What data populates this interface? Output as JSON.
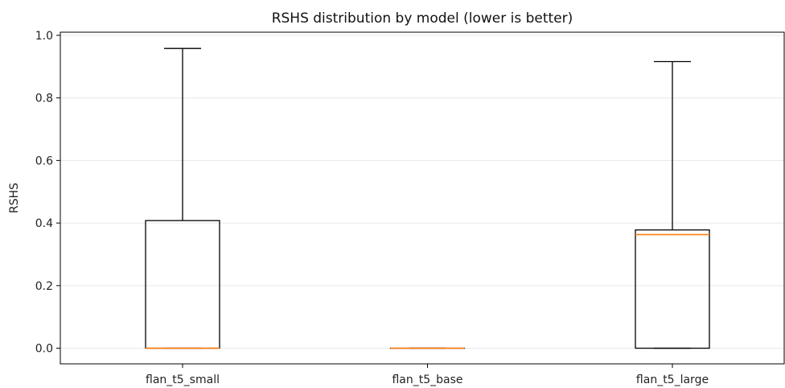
{
  "chart_data": {
    "type": "box",
    "title": "RSHS distribution by model (lower is better)",
    "xlabel": "",
    "ylabel": "RSHS",
    "ylim": [
      -0.05,
      1.01
    ],
    "yticks": [
      "0.0",
      "0.2",
      "0.4",
      "0.6",
      "0.8",
      "1.0"
    ],
    "ytick_values": [
      0.0,
      0.2,
      0.4,
      0.6,
      0.8,
      1.0
    ],
    "grid": "horizontal",
    "categories": [
      "flan_t5_small",
      "flan_t5_base",
      "flan_t5_large"
    ],
    "boxes": [
      {
        "whisker_low": 0.0,
        "q1": 0.0,
        "median": 0.0,
        "q3": 0.408,
        "whisker_high": 0.958
      },
      {
        "whisker_low": 0.0,
        "q1": 0.0,
        "median": 0.0,
        "q3": 0.0,
        "whisker_high": 0.0
      },
      {
        "whisker_low": 0.0,
        "q1": 0.0,
        "median": 0.363,
        "q3": 0.378,
        "whisker_high": 0.916
      }
    ],
    "colors": {
      "box": "#000000",
      "median": "#ff7f0e",
      "grid": "#e6e6e6"
    }
  }
}
